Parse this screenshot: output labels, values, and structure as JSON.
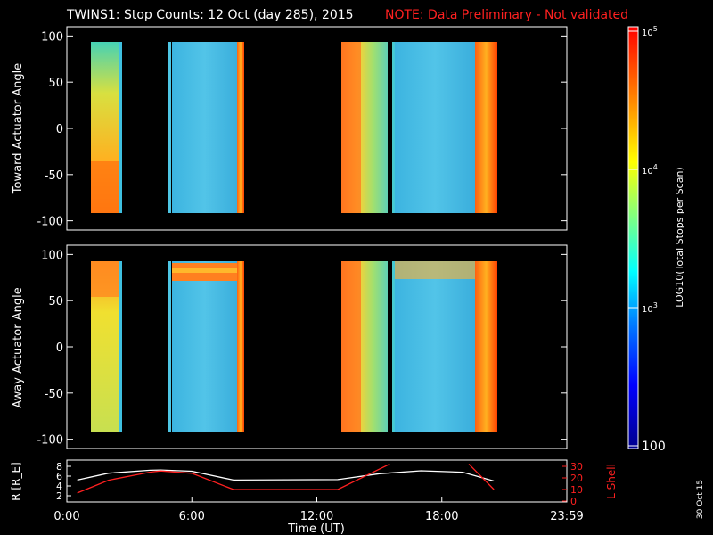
{
  "header": {
    "title": "TWINS1: Stop Counts: 12 Oct (day 285), 2015",
    "note": "NOTE: Data Preliminary - Not validated",
    "note_color": "#ff2020"
  },
  "stamp": "30 Oct 15",
  "chart_data": [
    {
      "type": "heatmap",
      "ylabel": "Toward Actuator Angle",
      "ylim": [
        -110,
        110
      ],
      "yticks": [
        "100",
        "50",
        "0",
        "-50",
        "-100"
      ],
      "xlim_hours": [
        0,
        24
      ],
      "data_blocks_hours": [
        [
          0.8,
          2.1
        ],
        [
          4.7,
          8.2
        ],
        [
          13.0,
          20.3
        ]
      ]
    },
    {
      "type": "heatmap",
      "ylabel": "Away Actuator Angle",
      "ylim": [
        -110,
        110
      ],
      "yticks": [
        "100",
        "50",
        "0",
        "-50",
        "-100"
      ],
      "xlim_hours": [
        0,
        24
      ],
      "data_blocks_hours": [
        [
          0.8,
          2.1
        ],
        [
          4.7,
          8.2
        ],
        [
          13.0,
          20.3
        ]
      ]
    },
    {
      "type": "line",
      "ylabel_left": "R [R_E]",
      "ylabel_right": "L Shell",
      "yticks_left": [
        "8",
        "6",
        "4",
        "2"
      ],
      "yticks_right": [
        "30",
        "20",
        "10",
        "0"
      ],
      "xlabel": "Time (UT)",
      "xticks": [
        "0:00",
        "6:00",
        "12:00",
        "18:00",
        "23:59"
      ],
      "series": [
        {
          "color": "#ffffff",
          "x": [
            0.5,
            2,
            4,
            4.5,
            6,
            8,
            13,
            15,
            17,
            19,
            20.5
          ],
          "y": [
            5.2,
            6.6,
            7.2,
            7.25,
            7.0,
            5.2,
            5.3,
            6.5,
            7.1,
            6.8,
            5.0
          ]
        },
        {
          "color": "#ff2020",
          "x": [
            0.5,
            2,
            4,
            4.5,
            6,
            8,
            13,
            15.5
          ],
          "y": [
            7,
            18,
            25,
            26,
            24,
            10,
            10,
            32
          ]
        },
        {
          "color": "#ff2020",
          "x": [
            19.3,
            20.5
          ],
          "y": [
            32,
            10
          ]
        }
      ]
    }
  ],
  "colorbar": {
    "label": "LOG10(Total Stops per Scan)",
    "ticks": [
      "10^5",
      "10^4",
      "10^3",
      "100"
    ],
    "gradient": [
      "#ff0000",
      "#ff8c00",
      "#ffff00",
      "#80ff80",
      "#00ffff",
      "#0080ff",
      "#0000ff",
      "#00008b"
    ]
  }
}
